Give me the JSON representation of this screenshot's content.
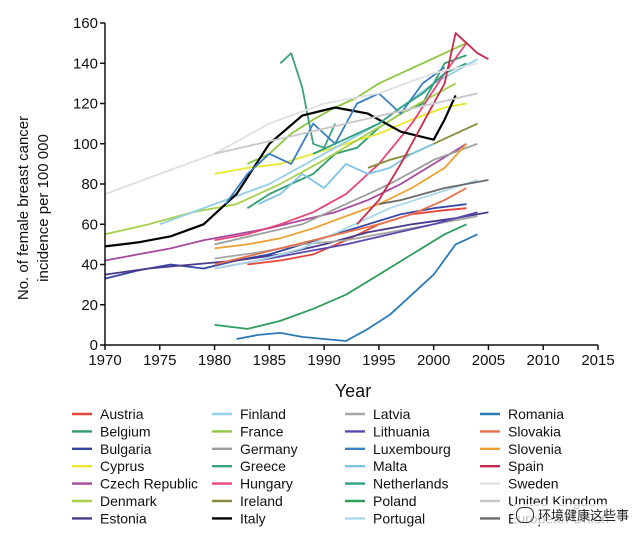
{
  "chart_data": {
    "type": "line",
    "title": "",
    "xlabel": "Year",
    "ylabel": "No. of female breast cancer incidence per 100 000",
    "xlim": [
      1970,
      2015
    ],
    "ylim": [
      0,
      160
    ],
    "xticks": [
      "1970",
      "1975",
      "1980",
      "1985",
      "1990",
      "1995",
      "2000",
      "2005",
      "2010",
      "2015"
    ],
    "yticks": [
      "0",
      "20",
      "40",
      "60",
      "80",
      "100",
      "120",
      "140",
      "160"
    ],
    "grid": false,
    "legend_placement": "bottom",
    "series": [
      {
        "name": "Austria",
        "color": "#e8463a",
        "x": [
          1983,
          1986,
          1989,
          1992,
          1995,
          1998,
          2001,
          2003
        ],
        "y": [
          40,
          42,
          45,
          52,
          60,
          65,
          67,
          68
        ]
      },
      {
        "name": "Belgium",
        "color": "#2e9e6c",
        "x": [
          1983,
          1985,
          1987,
          1989,
          1991,
          1993,
          1995,
          1997,
          1999,
          2001,
          2003
        ],
        "y": [
          68,
          75,
          80,
          85,
          95,
          98,
          108,
          115,
          120,
          140,
          144
        ]
      },
      {
        "name": "Bulgaria",
        "color": "#3446a5",
        "x": [
          1970,
          1973,
          1976,
          1979,
          1982,
          1985,
          1988,
          1991,
          1994,
          1997,
          2000,
          2003
        ],
        "y": [
          33,
          37,
          40,
          38,
          42,
          45,
          50,
          55,
          60,
          65,
          68,
          70
        ]
      },
      {
        "name": "Cyprus",
        "color": "#e9e62b",
        "x": [
          1980,
          1983,
          1986,
          1989,
          1992,
          1995,
          1998,
          2001,
          2003
        ],
        "y": [
          85,
          88,
          90,
          95,
          100,
          105,
          112,
          118,
          120
        ]
      },
      {
        "name": "Czech Republic",
        "color": "#a64aa0",
        "x": [
          1970,
          1973,
          1976,
          1979,
          1982,
          1985,
          1988,
          1991,
          1994,
          1997,
          2000,
          2003
        ],
        "y": [
          42,
          45,
          48,
          52,
          55,
          58,
          62,
          66,
          72,
          80,
          90,
          100
        ]
      },
      {
        "name": "Denmark",
        "color": "#a8d04b",
        "x": [
          1970,
          1974,
          1978,
          1982,
          1986,
          1990,
          1994,
          1998,
          2002
        ],
        "y": [
          55,
          60,
          66,
          70,
          80,
          92,
          105,
          118,
          130
        ]
      },
      {
        "name": "Estonia",
        "color": "#4a3a8a",
        "x": [
          1970,
          1974,
          1978,
          1982,
          1986,
          1990,
          1994,
          1998,
          2002,
          2005
        ],
        "y": [
          35,
          38,
          40,
          42,
          45,
          50,
          56,
          60,
          63,
          66
        ]
      },
      {
        "name": "Finland",
        "color": "#93d0e8",
        "x": [
          1975,
          1980,
          1985,
          1990,
          1995,
          2000,
          2004
        ],
        "y": [
          60,
          70,
          80,
          95,
          110,
          130,
          142
        ]
      },
      {
        "name": "France",
        "color": "#8ec640",
        "x": [
          1983,
          1985,
          1987,
          1989,
          1991,
          1993,
          1995,
          1997,
          1999,
          2001,
          2003
        ],
        "y": [
          90,
          95,
          105,
          112,
          118,
          123,
          130,
          135,
          140,
          145,
          150
        ]
      },
      {
        "name": "Germany",
        "color": "#9e9e9e",
        "x": [
          1980,
          1984,
          1988,
          1992,
          1996,
          2000,
          2004
        ],
        "y": [
          50,
          55,
          60,
          70,
          80,
          92,
          100
        ]
      },
      {
        "name": "Greece",
        "color": "#3aa080",
        "x": [
          1986,
          1987,
          1988,
          1989,
          1990,
          1991
        ],
        "y": [
          140,
          145,
          128,
          100,
          98,
          110
        ]
      },
      {
        "name": "Hungary",
        "color": "#e8457a",
        "x": [
          1980,
          1983,
          1986,
          1989,
          1992,
          1995,
          1998,
          2001,
          2003
        ],
        "y": [
          52,
          55,
          60,
          66,
          75,
          90,
          110,
          135,
          150
        ]
      },
      {
        "name": "Ireland",
        "color": "#8a8a3a",
        "x": [
          1994,
          1996,
          1998,
          2000,
          2002,
          2004
        ],
        "y": [
          88,
          92,
          95,
          100,
          105,
          110
        ]
      },
      {
        "name": "Italy",
        "color": "#000000",
        "x": [
          1970,
          1973,
          1976,
          1979,
          1982,
          1985,
          1988,
          1991,
          1994,
          1997,
          2000,
          2001,
          2002
        ],
        "y": [
          49,
          51,
          54,
          60,
          75,
          100,
          114,
          118,
          115,
          106,
          102,
          112,
          124
        ]
      },
      {
        "name": "Latvia",
        "color": "#a6a6a6",
        "x": [
          1980,
          1984,
          1988,
          1992,
          1996,
          2000,
          2004
        ],
        "y": [
          43,
          46,
          50,
          52,
          56,
          60,
          64
        ]
      },
      {
        "name": "Lithuania",
        "color": "#5a4ab0",
        "x": [
          1980,
          1984,
          1988,
          1992,
          1996,
          2000,
          2004
        ],
        "y": [
          38,
          42,
          46,
          50,
          55,
          60,
          66
        ]
      },
      {
        "name": "Luxembourg",
        "color": "#3b7fc4",
        "x": [
          1981,
          1983,
          1985,
          1987,
          1989,
          1991,
          1993,
          1995,
          1997,
          1999,
          2001
        ],
        "y": [
          70,
          85,
          95,
          90,
          110,
          100,
          120,
          125,
          115,
          130,
          138
        ]
      },
      {
        "name": "Malta",
        "color": "#7ec4e8",
        "x": [
          1984,
          1986,
          1988,
          1990,
          1992,
          1994,
          1996,
          1998,
          2000
        ],
        "y": [
          70,
          75,
          85,
          78,
          90,
          85,
          88,
          95,
          100
        ]
      },
      {
        "name": "Netherlands",
        "color": "#2f9e82",
        "x": [
          1989,
          1991,
          1993,
          1995,
          1997,
          1999,
          2001,
          2003
        ],
        "y": [
          95,
          100,
          105,
          110,
          118,
          125,
          135,
          140
        ]
      },
      {
        "name": "Poland",
        "color": "#2e9e5c",
        "x": [
          1980,
          1983,
          1986,
          1989,
          1992,
          1995,
          1998,
          2001,
          2003
        ],
        "y": [
          10,
          8,
          12,
          18,
          25,
          35,
          45,
          55,
          60
        ]
      },
      {
        "name": "Portugal",
        "color": "#a8d8ec",
        "x": [
          1980,
          1984,
          1988,
          1992,
          1996,
          2000,
          2004
        ],
        "y": [
          38,
          42,
          48,
          58,
          68,
          75,
          82
        ]
      },
      {
        "name": "Romania",
        "color": "#2a7ab8",
        "x": [
          1982,
          1984,
          1986,
          1988,
          1990,
          1992,
          1994,
          1996,
          1998,
          2000,
          2002,
          2004
        ],
        "y": [
          3,
          5,
          6,
          4,
          3,
          2,
          8,
          15,
          25,
          35,
          50,
          55
        ]
      },
      {
        "name": "Slovakia",
        "color": "#e8704a",
        "x": [
          1980,
          1983,
          1986,
          1989,
          1992,
          1995,
          1998,
          2001,
          2003
        ],
        "y": [
          40,
          44,
          48,
          52,
          56,
          60,
          65,
          72,
          78
        ]
      },
      {
        "name": "Slovenia",
        "color": "#f0a030",
        "x": [
          1980,
          1983,
          1986,
          1989,
          1992,
          1995,
          1998,
          2001,
          2003
        ],
        "y": [
          48,
          50,
          53,
          58,
          64,
          70,
          78,
          88,
          100
        ]
      },
      {
        "name": "Spain",
        "color": "#c82a4a",
        "x": [
          1993,
          1995,
          1997,
          1999,
          2001,
          2002,
          2003,
          2004,
          2005
        ],
        "y": [
          60,
          72,
          90,
          110,
          130,
          155,
          150,
          145,
          142
        ]
      },
      {
        "name": "Sweden",
        "color": "#e0e0e0",
        "x": [
          1970,
          1975,
          1980,
          1985,
          1990,
          1995,
          2000,
          2004
        ],
        "y": [
          75,
          85,
          95,
          110,
          120,
          125,
          135,
          140
        ]
      },
      {
        "name": "United Kingdom",
        "color": "#c8c8c8",
        "x": [
          1980,
          1984,
          1988,
          1992,
          1996,
          2000,
          2004
        ],
        "y": [
          95,
          100,
          105,
          110,
          115,
          120,
          125
        ]
      },
      {
        "name": "European Union",
        "color": "#6a6a6a",
        "x": [
          1995,
          1997,
          1999,
          2001,
          2003,
          2005
        ],
        "y": [
          70,
          72,
          75,
          78,
          80,
          82
        ]
      }
    ]
  },
  "watermark_text": "环境健康这些事"
}
